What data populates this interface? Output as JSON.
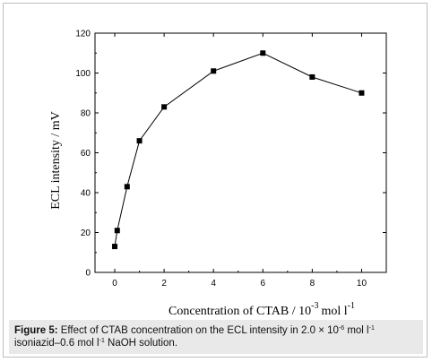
{
  "chart_data": {
    "type": "line",
    "title": "",
    "xlabel": "Concentration of CTAB / 10",
    "xlabel_exp": "-3",
    "xlabel_unit": "mol l",
    "xlabel_unit_exp": "-1",
    "ylabel": "ECL intensity / mV",
    "xlim": [
      -0.8,
      11.0
    ],
    "ylim": [
      0,
      120
    ],
    "xticks": [
      0,
      2,
      4,
      6,
      8,
      10
    ],
    "yticks": [
      0,
      20,
      40,
      60,
      80,
      100,
      120
    ],
    "grid": false,
    "marker": "square",
    "series": [
      {
        "x": [
          0,
          0.1,
          0.5,
          1,
          2,
          4,
          6,
          8,
          10
        ],
        "y": [
          13,
          21,
          43,
          66,
          83,
          101,
          110,
          98,
          90
        ]
      }
    ]
  },
  "caption": {
    "label": "Figure 5:",
    "text_1": " Effect of CTAB concentration on the ECL intensity in 2.0 × 10",
    "exp_1": "-6",
    "text_2": " mol l",
    "exp_2": "-1",
    "line2_text_1": "isoniazid–0.6 mol l",
    "line2_exp": "-1",
    "line2_text_2": " NaOH solution."
  }
}
